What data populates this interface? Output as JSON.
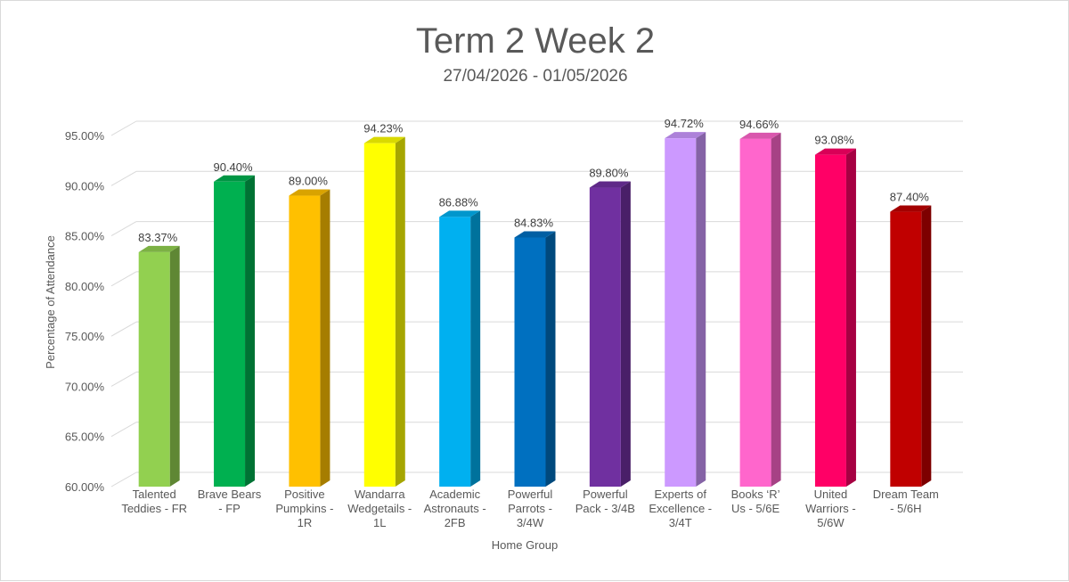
{
  "chart_data": {
    "type": "bar",
    "title": "Term 2 Week 2",
    "subtitle": "27/04/2026 - 01/05/2026",
    "xlabel": "Home Group",
    "ylabel": "Percentage of Attendance",
    "ylim": [
      60,
      95
    ],
    "yticks": [
      60,
      65,
      70,
      75,
      80,
      85,
      90,
      95
    ],
    "ytick_labels": [
      "60.00%",
      "65.00%",
      "70.00%",
      "75.00%",
      "80.00%",
      "85.00%",
      "90.00%",
      "95.00%"
    ],
    "grid": true,
    "legend": "none",
    "categories": [
      [
        "Talented",
        "Teddies - FR"
      ],
      [
        "Brave Bears",
        "- FP"
      ],
      [
        "Positive",
        "Pumpkins -",
        "1R"
      ],
      [
        "Wandarra",
        "Wedgetails -",
        "1L"
      ],
      [
        "Academic",
        "Astronauts -",
        "2FB"
      ],
      [
        "Powerful",
        "Parrots -",
        "3/4W"
      ],
      [
        "Powerful",
        "Pack - 3/4B"
      ],
      [
        "Experts of",
        "Excellence -",
        "3/4T"
      ],
      [
        "Books ‘R’",
        "Us - 5/6E"
      ],
      [
        "United",
        "Warriors -",
        "5/6W"
      ],
      [
        "Dream Team",
        "- 5/6H"
      ]
    ],
    "values": [
      83.37,
      90.4,
      89.0,
      94.23,
      86.88,
      84.83,
      89.8,
      94.72,
      94.66,
      93.08,
      87.4
    ],
    "value_labels": [
      "83.37%",
      "90.40%",
      "89.00%",
      "94.23%",
      "86.88%",
      "84.83%",
      "89.80%",
      "94.72%",
      "94.66%",
      "93.08%",
      "87.40%"
    ],
    "colors": [
      "#92d050",
      "#00b050",
      "#ffc000",
      "#ffff00",
      "#00b0f0",
      "#0070c0",
      "#7030a0",
      "#cc99ff",
      "#ff66cc",
      "#ff0066",
      "#c00000"
    ]
  }
}
